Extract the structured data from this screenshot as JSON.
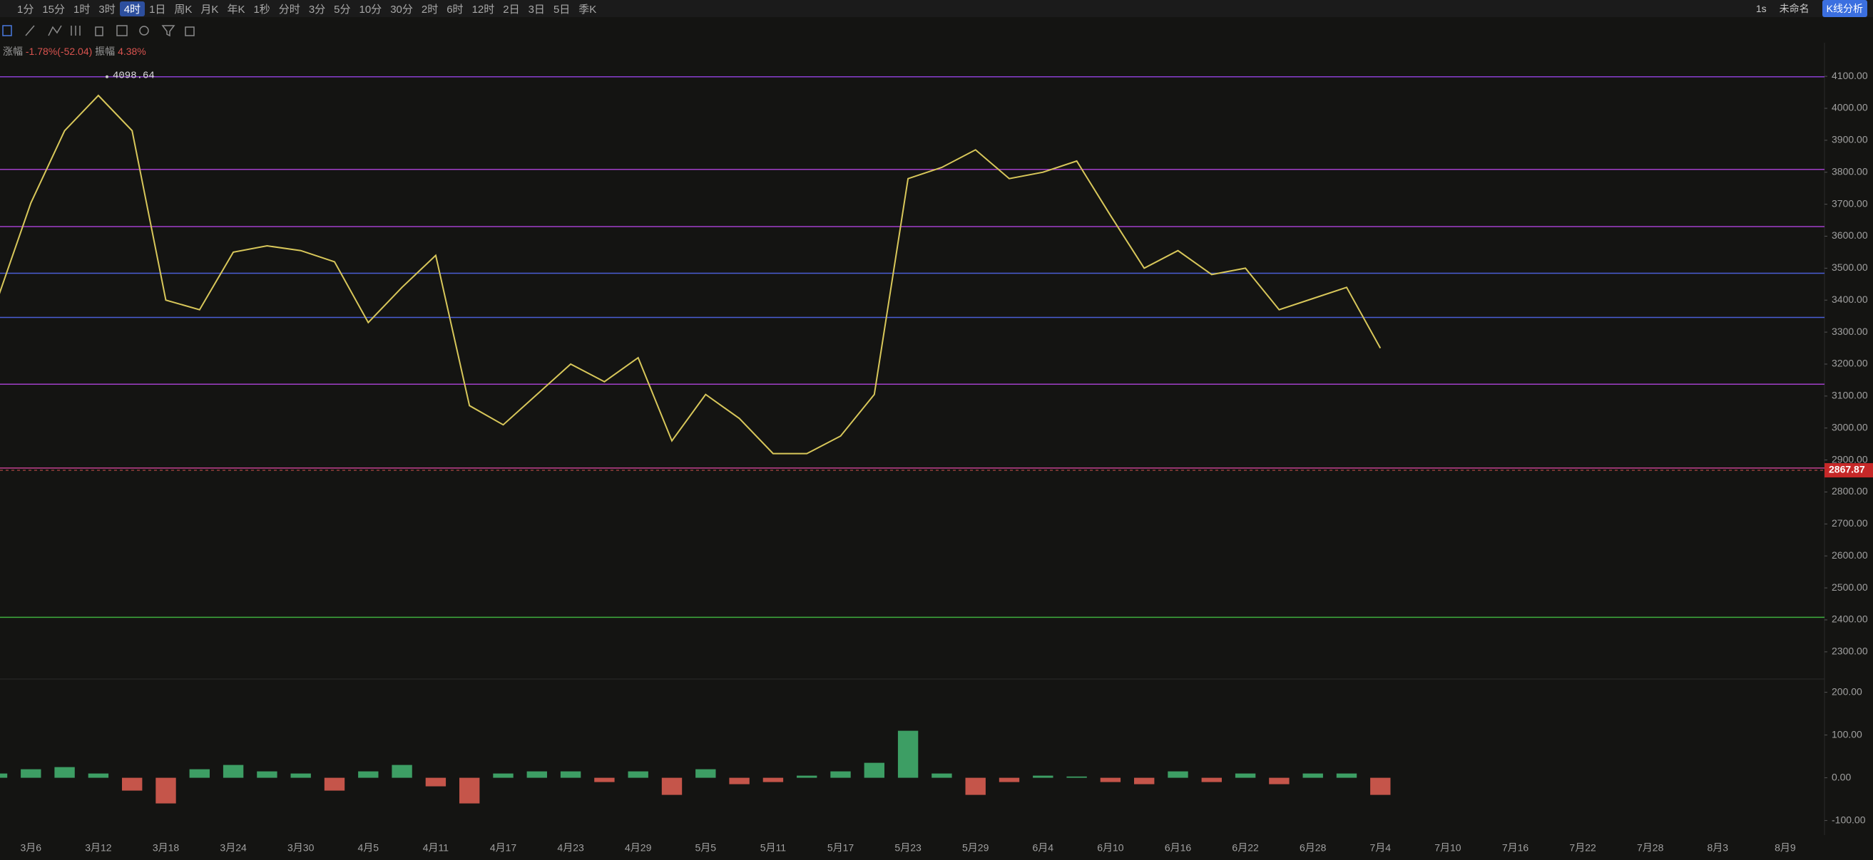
{
  "toolbar": {
    "timeframes": [
      "1分",
      "15分",
      "1时",
      "3时",
      "4时",
      "1日",
      "周K",
      "月K",
      "年K",
      "1秒",
      "分时",
      "3分",
      "5分",
      "10分",
      "30分",
      "2时",
      "6时",
      "12时",
      "2日",
      "3日",
      "5日",
      "季K"
    ],
    "active_index": 4,
    "right": {
      "interval": "1s",
      "layout": "未命名",
      "analysis": "K线分析"
    }
  },
  "info": {
    "change_label": "涨幅",
    "change": "-1.78%(-52.04)",
    "amplitude_label": "振幅",
    "amplitude": "4.38%"
  },
  "chart_data": [
    {
      "type": "line",
      "color": "#d8c75a",
      "categories": [
        null,
        "3月6",
        null,
        "3月12",
        null,
        "3月18",
        null,
        "3月24",
        null,
        "3月30",
        null,
        "4月5",
        null,
        "4月11",
        null,
        "4月17",
        null,
        "4月23",
        null,
        "4月29",
        null,
        "5月5",
        null,
        "5月11",
        null,
        "5月17",
        null,
        "5月23",
        null,
        "5月29",
        null,
        "6月4",
        null,
        "6月10",
        null,
        "6月16",
        null,
        "6月22",
        null,
        "6月28",
        null,
        "7月4",
        null,
        "7月10",
        null,
        "7月16",
        null,
        "7月22",
        null,
        "7月28",
        null,
        "8月3",
        null,
        "8月9"
      ],
      "values": [
        3400,
        3704,
        3930,
        4040,
        3930,
        3400,
        3370,
        3550,
        3570,
        3555,
        3520,
        3330,
        3440,
        3540,
        3070,
        3010,
        3105,
        3200,
        3145,
        3220,
        2960,
        3105,
        3030,
        2920,
        2920,
        2975,
        3105,
        3780,
        3815,
        3870,
        3780,
        3800,
        3835,
        3665,
        3500,
        3555,
        3480,
        3500,
        3370,
        3405,
        3440,
        3250,
        null,
        null,
        null,
        null,
        null,
        null,
        null,
        null,
        null,
        null,
        null,
        null
      ],
      "ylim": [
        2215,
        4205
      ],
      "yticks": [
        {
          "value": 2300,
          "label": "2300.00"
        },
        {
          "value": 2400,
          "label": "2400.00"
        },
        {
          "value": 2500,
          "label": "2500.00"
        },
        {
          "value": 2600,
          "label": "2600.00"
        },
        {
          "value": 2700,
          "label": "2700.00"
        },
        {
          "value": 2800,
          "label": "2800.00"
        },
        {
          "value": 2900,
          "label": "2900.00"
        },
        {
          "value": 3000,
          "label": "3000.00"
        },
        {
          "value": 3100,
          "label": "3100.00"
        },
        {
          "value": 3200,
          "label": "3200.00"
        },
        {
          "value": 3300,
          "label": "3300.00"
        },
        {
          "value": 3400,
          "label": "3400.00"
        },
        {
          "value": 3500,
          "label": "3500.00"
        },
        {
          "value": 3600,
          "label": "3600.00"
        },
        {
          "value": 3700,
          "label": "3700.00"
        },
        {
          "value": 3800,
          "label": "3800.00"
        },
        {
          "value": 3900,
          "label": "3900.00"
        },
        {
          "value": 4000,
          "label": "4000.00"
        },
        {
          "value": 4100,
          "label": "4100.00"
        }
      ],
      "hlines": [
        {
          "value": 4098.64,
          "color": "#8a3fd1"
        },
        {
          "value": 3809,
          "color": "#a23fc9"
        },
        {
          "value": 3630,
          "color": "#a23fc9"
        },
        {
          "value": 3484,
          "color": "#4a5fd6"
        },
        {
          "value": 3346,
          "color": "#4a5fd6"
        },
        {
          "value": 3137,
          "color": "#a23fc9"
        },
        {
          "value": 2875,
          "color": "#c2418f"
        },
        {
          "value": 2408,
          "color": "#3fae3f"
        }
      ],
      "last_price": 2867.87
    },
    {
      "type": "bar",
      "colors": {
        "up": "#3d9e64",
        "down": "#c5554a"
      },
      "values": [
        10,
        20,
        25,
        10,
        -30,
        -60,
        20,
        30,
        15,
        10,
        -30,
        15,
        30,
        -20,
        -60,
        10,
        15,
        15,
        -10,
        15,
        -40,
        20,
        -15,
        -10,
        5,
        15,
        35,
        110,
        10,
        -40,
        -10,
        5,
        3,
        -10,
        -15,
        15,
        -10,
        10,
        -15,
        10,
        10,
        -40,
        null,
        null,
        null,
        null,
        null,
        null,
        null,
        null,
        null,
        null,
        null,
        null
      ],
      "ylim": [
        -134,
        231
      ],
      "yticks": [
        {
          "value": 200,
          "label": "200.00"
        },
        {
          "value": 100,
          "label": "100.00"
        },
        {
          "value": 0,
          "label": "0.00"
        },
        {
          "value": -100,
          "label": "-100.00"
        }
      ]
    }
  ]
}
